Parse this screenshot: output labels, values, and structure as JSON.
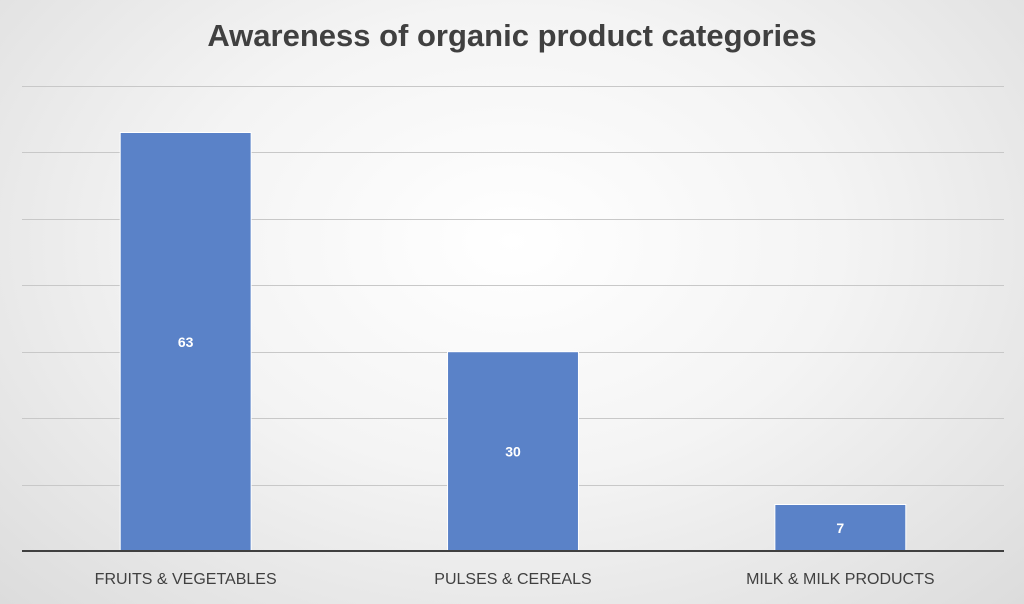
{
  "chart_data": {
    "type": "bar",
    "title": "Awareness of organic product categories",
    "categories": [
      "FRUITS & VEGETABLES",
      "PULSES & CEREALS",
      "MILK & MILK PRODUCTS"
    ],
    "values": [
      63,
      30,
      7
    ],
    "data_labels": [
      "63",
      "30",
      "7"
    ],
    "ylim": [
      0,
      70
    ],
    "y_gridline_step": 10,
    "grid": true,
    "legend": "none",
    "bar_color": "#5a82c8"
  }
}
